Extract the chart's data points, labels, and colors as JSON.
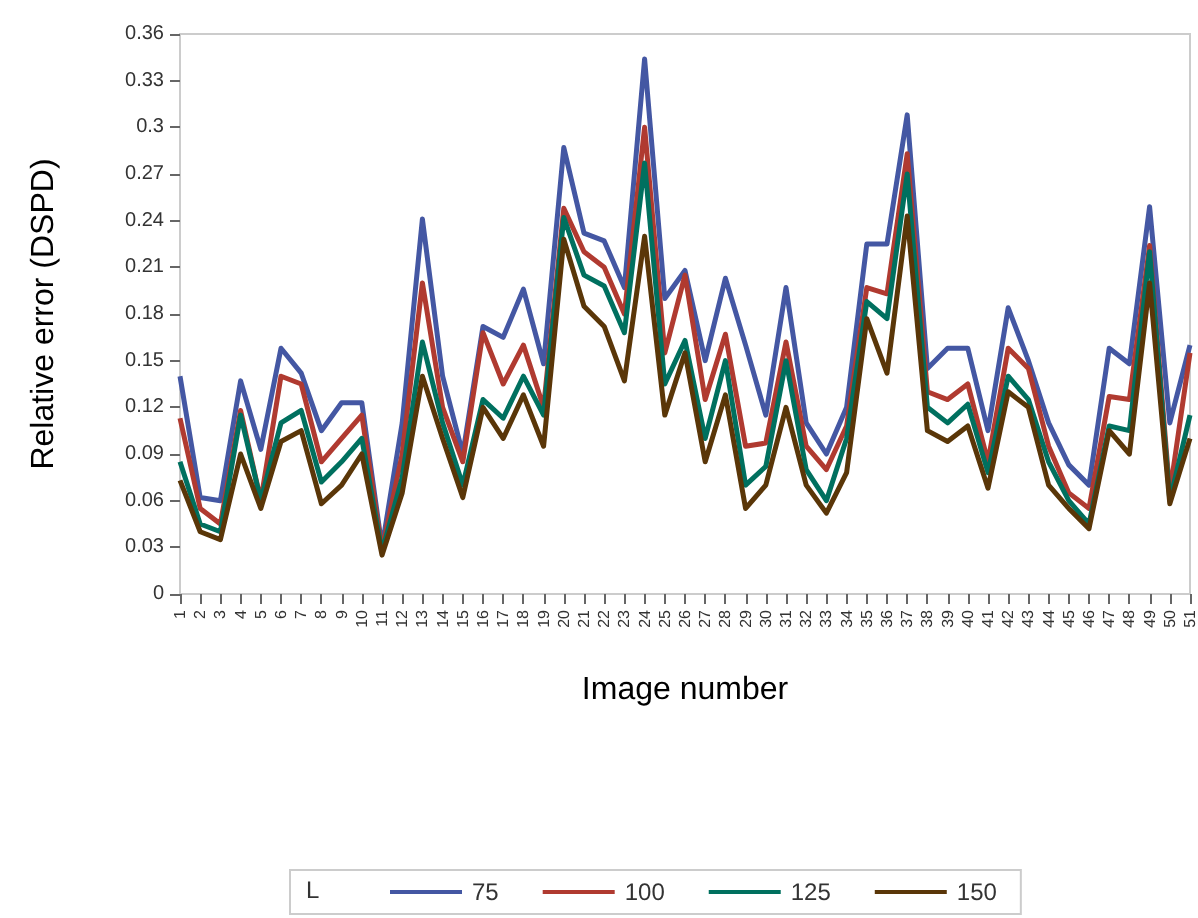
{
  "chart_data": {
    "type": "line",
    "xlabel": "Image number",
    "ylabel": "Relative error (DSPD)",
    "legend_title": "L",
    "legend": "bottom",
    "grid": false,
    "marker": "none",
    "line_style": "solid",
    "categories": [
      "1",
      "2",
      "3",
      "4",
      "5",
      "6",
      "7",
      "8",
      "9",
      "10",
      "11",
      "12",
      "13",
      "14",
      "15",
      "16",
      "17",
      "18",
      "19",
      "20",
      "21",
      "22",
      "23",
      "24",
      "25",
      "26",
      "27",
      "28",
      "29",
      "30",
      "31",
      "32",
      "33",
      "34",
      "35",
      "36",
      "37",
      "38",
      "39",
      "40",
      "41",
      "42",
      "43",
      "44",
      "45",
      "46",
      "47",
      "48",
      "49",
      "50",
      "51"
    ],
    "ylim": [
      0,
      0.36
    ],
    "yticks": [
      0,
      0.03,
      0.06,
      0.09,
      0.12,
      0.15,
      0.18,
      0.21,
      0.24,
      0.27,
      0.3,
      0.33,
      0.36
    ],
    "series": [
      {
        "name": "75",
        "color": "#4457a3",
        "values": [
          0.14,
          0.062,
          0.06,
          0.137,
          0.093,
          0.158,
          0.142,
          0.105,
          0.123,
          0.123,
          0.03,
          0.11,
          0.241,
          0.14,
          0.09,
          0.172,
          0.165,
          0.196,
          0.148,
          0.287,
          0.232,
          0.227,
          0.197,
          0.344,
          0.19,
          0.208,
          0.15,
          0.203,
          0.16,
          0.115,
          0.197,
          0.11,
          0.09,
          0.12,
          0.225,
          0.225,
          0.308,
          0.145,
          0.158,
          0.158,
          0.105,
          0.184,
          0.15,
          0.11,
          0.083,
          0.07,
          0.158,
          0.148,
          0.249,
          0.11,
          0.16
        ]
      },
      {
        "name": "100",
        "color": "#b03a30",
        "values": [
          0.113,
          0.055,
          0.045,
          0.118,
          0.06,
          0.14,
          0.135,
          0.085,
          0.1,
          0.115,
          0.028,
          0.09,
          0.2,
          0.12,
          0.085,
          0.168,
          0.135,
          0.16,
          0.12,
          0.248,
          0.22,
          0.21,
          0.18,
          0.3,
          0.155,
          0.205,
          0.125,
          0.167,
          0.095,
          0.097,
          0.162,
          0.095,
          0.08,
          0.108,
          0.197,
          0.193,
          0.283,
          0.13,
          0.125,
          0.135,
          0.085,
          0.158,
          0.145,
          0.095,
          0.065,
          0.055,
          0.127,
          0.125,
          0.224,
          0.065,
          0.155
        ]
      },
      {
        "name": "125",
        "color": "#00705f",
        "values": [
          0.085,
          0.045,
          0.04,
          0.115,
          0.06,
          0.11,
          0.118,
          0.072,
          0.085,
          0.1,
          0.027,
          0.075,
          0.162,
          0.11,
          0.07,
          0.125,
          0.113,
          0.14,
          0.115,
          0.242,
          0.205,
          0.198,
          0.168,
          0.277,
          0.135,
          0.163,
          0.1,
          0.15,
          0.07,
          0.082,
          0.15,
          0.08,
          0.06,
          0.1,
          0.188,
          0.177,
          0.27,
          0.12,
          0.11,
          0.122,
          0.078,
          0.14,
          0.125,
          0.085,
          0.06,
          0.045,
          0.108,
          0.105,
          0.22,
          0.06,
          0.115
        ]
      },
      {
        "name": "150",
        "color": "#5a3608",
        "values": [
          0.073,
          0.04,
          0.035,
          0.09,
          0.055,
          0.098,
          0.105,
          0.058,
          0.07,
          0.09,
          0.025,
          0.065,
          0.14,
          0.1,
          0.062,
          0.12,
          0.1,
          0.128,
          0.095,
          0.228,
          0.185,
          0.172,
          0.137,
          0.23,
          0.115,
          0.155,
          0.085,
          0.128,
          0.055,
          0.07,
          0.12,
          0.07,
          0.052,
          0.078,
          0.177,
          0.142,
          0.243,
          0.105,
          0.098,
          0.108,
          0.068,
          0.13,
          0.12,
          0.07,
          0.055,
          0.042,
          0.105,
          0.09,
          0.2,
          0.058,
          0.1
        ]
      }
    ]
  }
}
